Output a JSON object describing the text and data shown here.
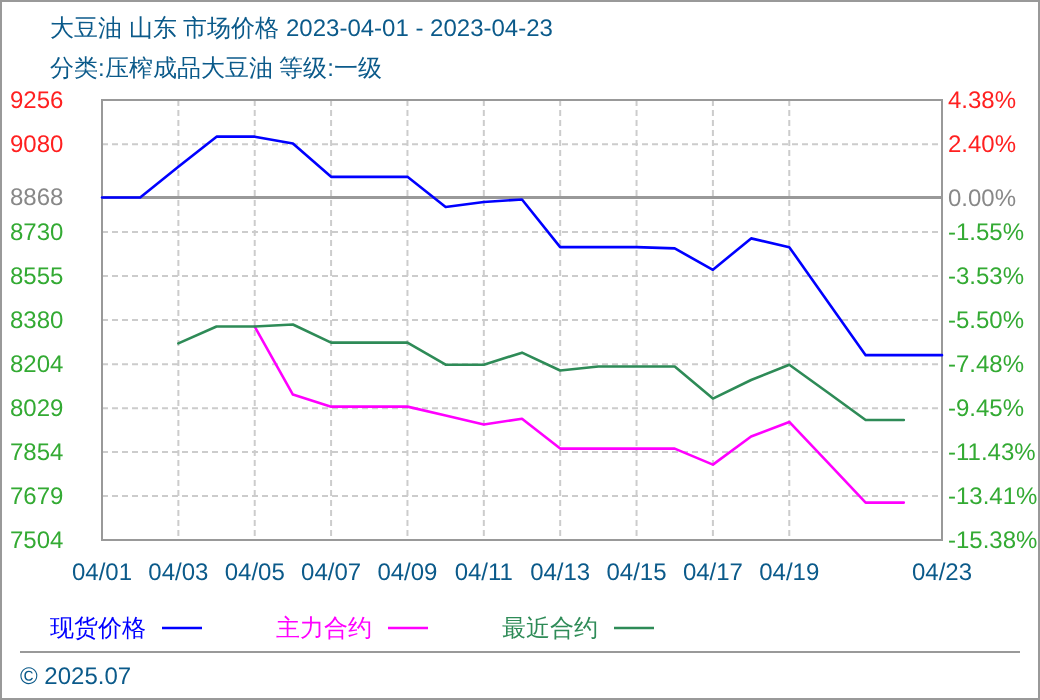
{
  "chart_data": {
    "type": "line",
    "title": "大豆油  山东  市场价格  2023-04-01 - 2023-04-23",
    "subtitle": "分类:压榨成品大豆油  等级:一级",
    "x": [
      "2023-04-01",
      "2023-04-02",
      "2023-04-03",
      "2023-04-04",
      "2023-04-05",
      "2023-04-06",
      "2023-04-07",
      "2023-04-08",
      "2023-04-09",
      "2023-04-10",
      "2023-04-11",
      "2023-04-12",
      "2023-04-13",
      "2023-04-14",
      "2023-04-15",
      "2023-04-16",
      "2023-04-17",
      "2023-04-18",
      "2023-04-19",
      "2023-04-20",
      "2023-04-21",
      "2023-04-22",
      "2023-04-23"
    ],
    "series": [
      {
        "name": "现货价格",
        "color": "#0000ff",
        "values": [
          8868,
          8868,
          8990,
          9110,
          9110,
          9083,
          8950,
          8950,
          8950,
          8830,
          8850,
          8860,
          8670,
          8670,
          8670,
          8665,
          8580,
          8705,
          8670,
          8455,
          8240,
          8240,
          8240
        ]
      },
      {
        "name": "主力合约",
        "color": "#ff00ff",
        "values": [
          null,
          null,
          null,
          null,
          8354,
          8083,
          8035,
          8035,
          8035,
          8000,
          7964,
          7987,
          7868,
          7868,
          7868,
          7868,
          7804,
          7916,
          7974,
          7814,
          7653,
          7653,
          null
        ]
      },
      {
        "name": "最近合约",
        "color": "#2e8b57",
        "values": [
          null,
          null,
          8287,
          8354,
          8354,
          8362,
          8290,
          8290,
          8290,
          8202,
          8202,
          8250,
          8179,
          8195,
          8195,
          8195,
          8067,
          8141,
          8202,
          8092,
          7982,
          7982,
          null
        ]
      }
    ],
    "xlim": [
      "2023-04-01",
      "2023-04-23"
    ],
    "xticks": [
      {
        "value": "2023-04-01",
        "label": "04/01"
      },
      {
        "value": "2023-04-03",
        "label": "04/03"
      },
      {
        "value": "2023-04-05",
        "label": "04/05"
      },
      {
        "value": "2023-04-07",
        "label": "04/07"
      },
      {
        "value": "2023-04-09",
        "label": "04/09"
      },
      {
        "value": "2023-04-11",
        "label": "04/11"
      },
      {
        "value": "2023-04-13",
        "label": "04/13"
      },
      {
        "value": "2023-04-15",
        "label": "04/15"
      },
      {
        "value": "2023-04-17",
        "label": "04/17"
      },
      {
        "value": "2023-04-19",
        "label": "04/19"
      },
      {
        "value": "2023-04-23",
        "label": "04/23"
      }
    ],
    "ylim": [
      7504,
      9256
    ],
    "yticks": [
      7504,
      7679,
      7854,
      8029,
      8204,
      8380,
      8555,
      8730,
      8868,
      9080,
      9256
    ],
    "y2lim": [
      -15.38,
      4.38
    ],
    "y2ticks": [
      {
        "value": -15.38,
        "label": "-15.38%"
      },
      {
        "value": -13.41,
        "label": "-13.41%"
      },
      {
        "value": -11.43,
        "label": "-11.43%"
      },
      {
        "value": -9.45,
        "label": "-9.45%"
      },
      {
        "value": -7.48,
        "label": "-7.48%"
      },
      {
        "value": -5.5,
        "label": "-5.50%"
      },
      {
        "value": -3.53,
        "label": "-3.53%"
      },
      {
        "value": -1.55,
        "label": "-1.55%"
      },
      {
        "value": 0,
        "label": "0.00%"
      },
      {
        "value": 2.4,
        "label": "2.40%"
      },
      {
        "value": 4.38,
        "label": "4.38%"
      }
    ],
    "ref_lines": [
      {
        "axis": "y",
        "value": 8868,
        "color": "#999999"
      }
    ],
    "grid": true,
    "legend": "bottom",
    "annotations": [
      "© 2025.07"
    ]
  }
}
